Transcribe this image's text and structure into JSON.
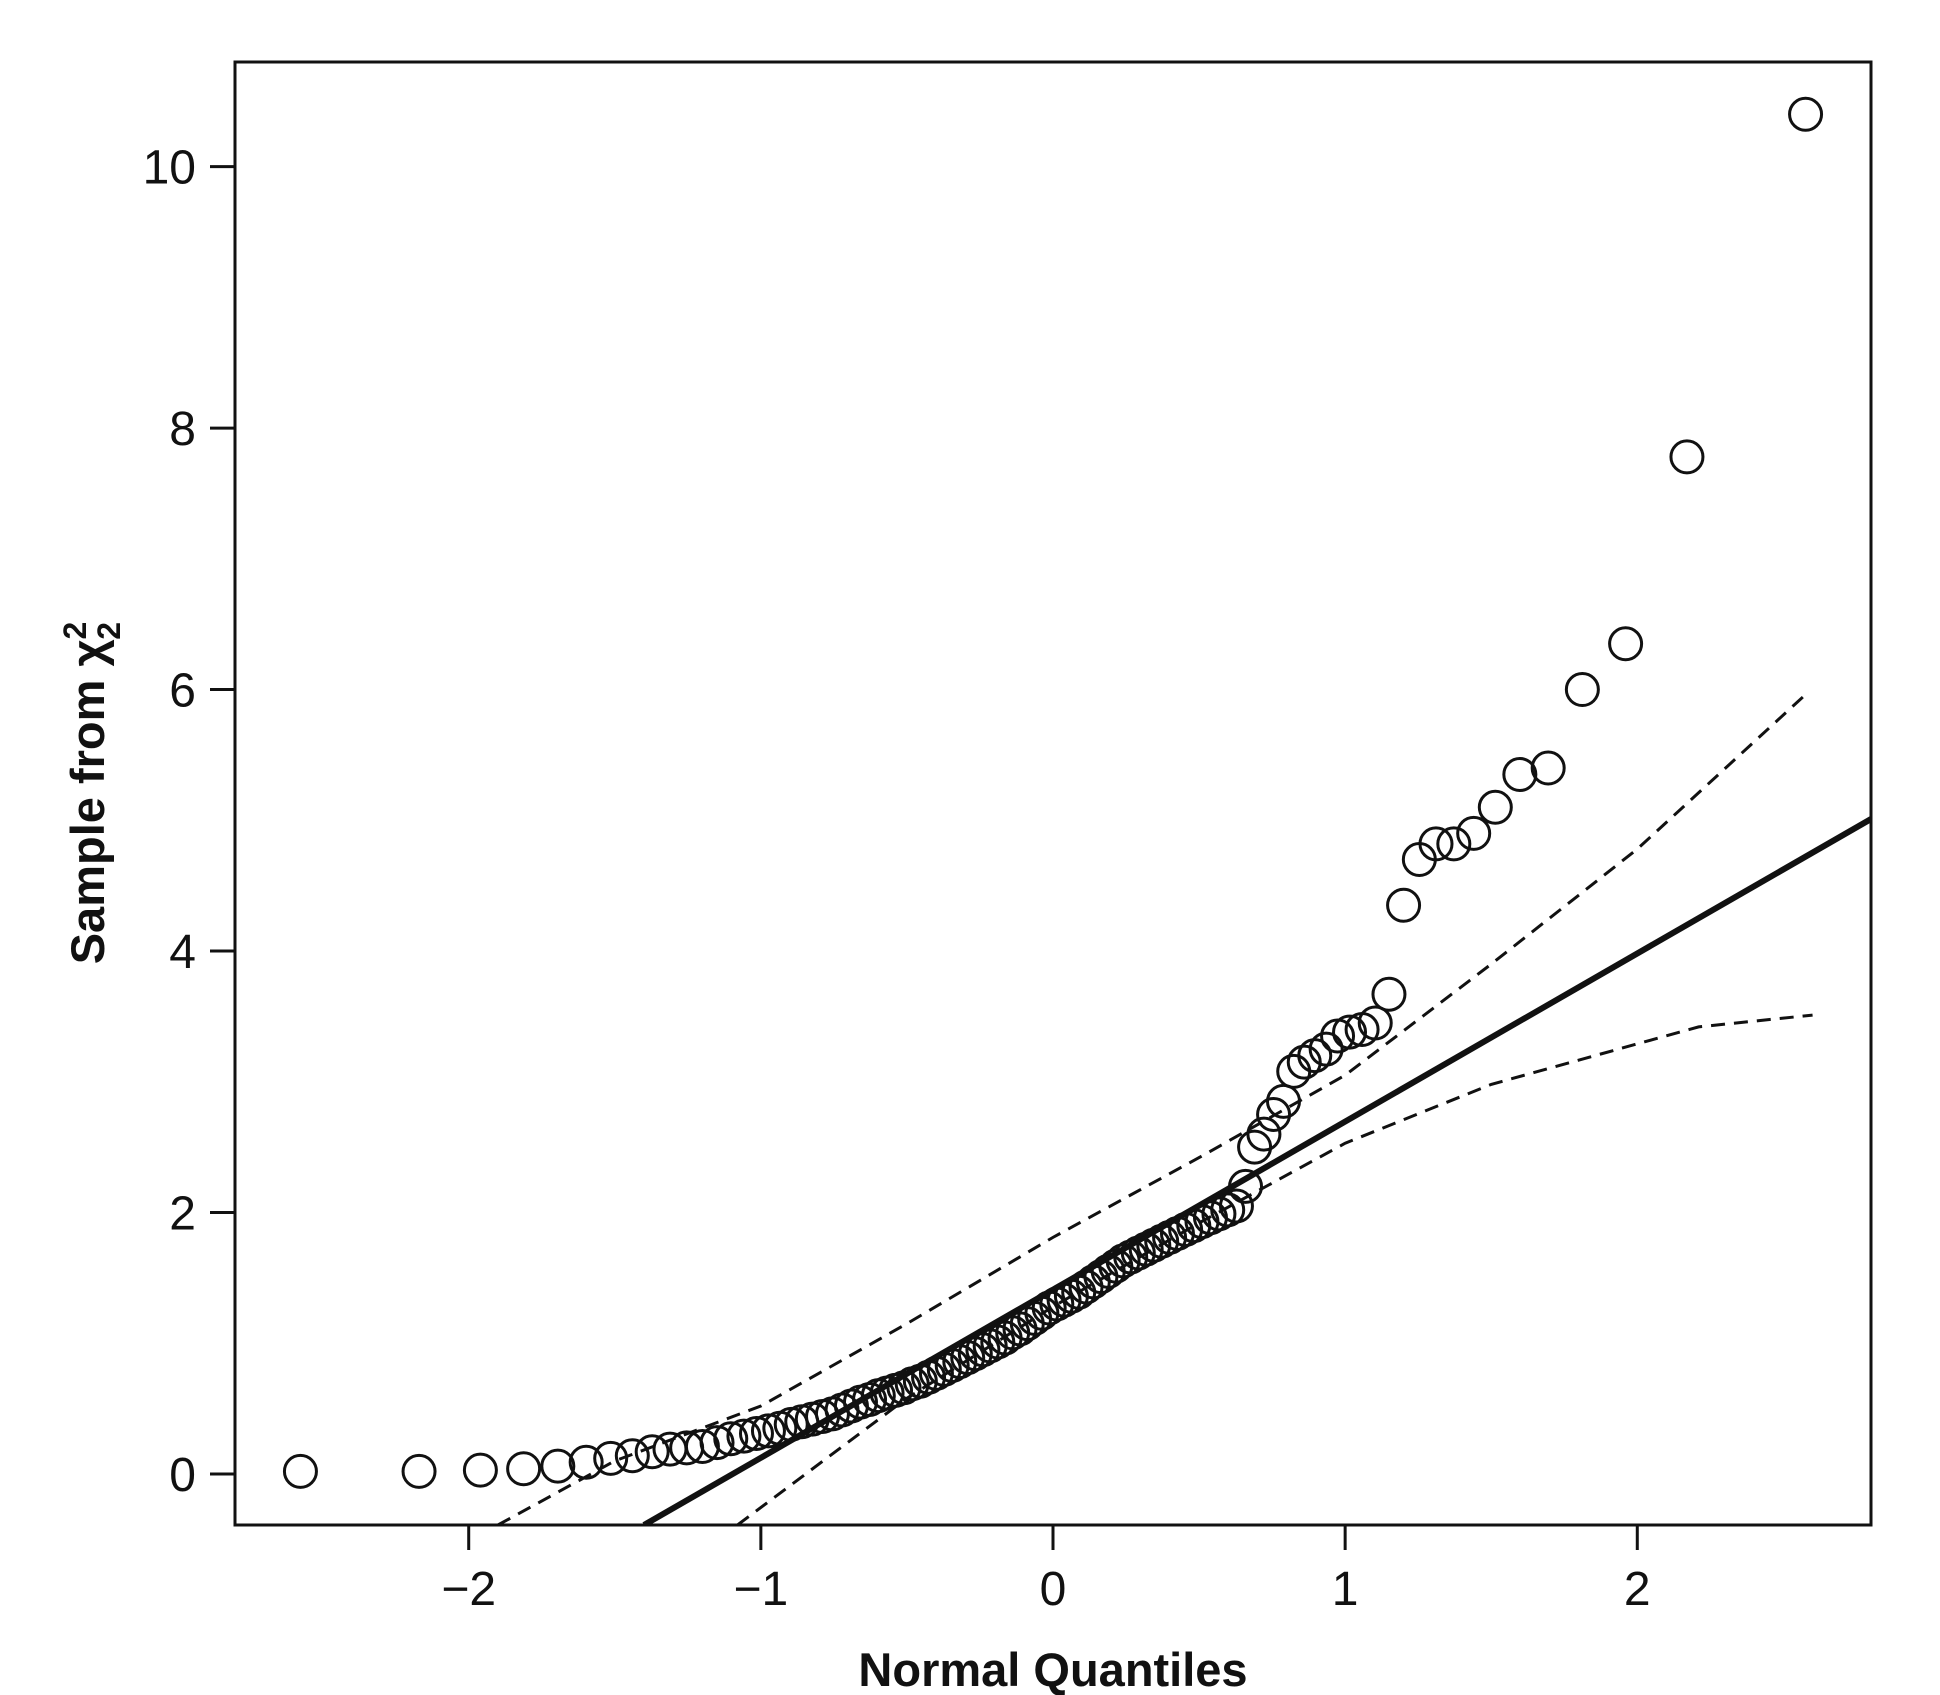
{
  "chart_data": {
    "type": "scatter",
    "x_label": "Normal Quantiles",
    "y_label": "Sample from χ",
    "y_label_superscript": "2",
    "y_label_subscript": "2",
    "xlim": [
      -2.8,
      2.8
    ],
    "ylim": [
      -0.39,
      10.8
    ],
    "xticks": [
      {
        "value": -2,
        "label": "−2"
      },
      {
        "value": -1,
        "label": "−1"
      },
      0,
      1,
      2
    ],
    "yticks": [
      0,
      2,
      4,
      6,
      8,
      10
    ],
    "grid": false,
    "color": "#111111",
    "x": [
      -2.576,
      -2.17,
      -1.96,
      -1.812,
      -1.695,
      -1.598,
      -1.514,
      -1.44,
      -1.372,
      -1.311,
      -1.254,
      -1.2,
      -1.15,
      -1.103,
      -1.058,
      -1.015,
      -0.974,
      -0.935,
      -0.896,
      -0.86,
      -0.824,
      -0.789,
      -0.755,
      -0.722,
      -0.69,
      -0.659,
      -0.628,
      -0.598,
      -0.568,
      -0.539,
      -0.51,
      -0.482,
      -0.454,
      -0.426,
      -0.399,
      -0.372,
      -0.345,
      -0.319,
      -0.292,
      -0.266,
      -0.24,
      -0.215,
      -0.189,
      -0.164,
      -0.138,
      -0.113,
      -0.088,
      -0.063,
      -0.038,
      -0.013,
      0.013,
      0.038,
      0.063,
      0.088,
      0.113,
      0.138,
      0.164,
      0.189,
      0.215,
      0.24,
      0.266,
      0.292,
      0.319,
      0.345,
      0.372,
      0.399,
      0.426,
      0.454,
      0.482,
      0.51,
      0.539,
      0.568,
      0.598,
      0.628,
      0.659,
      0.69,
      0.722,
      0.755,
      0.789,
      0.824,
      0.86,
      0.896,
      0.935,
      0.974,
      1.015,
      1.058,
      1.103,
      1.15,
      1.2,
      1.254,
      1.311,
      1.372,
      1.44,
      1.514,
      1.598,
      1.695,
      1.812,
      1.96,
      2.17,
      2.576
    ],
    "values": [
      0.02,
      0.02,
      0.03,
      0.04,
      0.06,
      0.09,
      0.12,
      0.14,
      0.17,
      0.19,
      0.2,
      0.21,
      0.24,
      0.27,
      0.29,
      0.31,
      0.33,
      0.35,
      0.38,
      0.4,
      0.42,
      0.44,
      0.46,
      0.49,
      0.52,
      0.55,
      0.57,
      0.6,
      0.62,
      0.64,
      0.66,
      0.69,
      0.71,
      0.74,
      0.77,
      0.8,
      0.83,
      0.86,
      0.89,
      0.92,
      0.95,
      0.98,
      1.01,
      1.04,
      1.08,
      1.11,
      1.15,
      1.19,
      1.23,
      1.27,
      1.3,
      1.33,
      1.36,
      1.39,
      1.43,
      1.47,
      1.51,
      1.55,
      1.59,
      1.63,
      1.66,
      1.69,
      1.72,
      1.75,
      1.78,
      1.81,
      1.84,
      1.87,
      1.9,
      1.93,
      1.96,
      1.99,
      2.02,
      2.05,
      2.2,
      2.5,
      2.6,
      2.75,
      2.85,
      3.08,
      3.15,
      3.2,
      3.25,
      3.35,
      3.38,
      3.4,
      3.45,
      3.67,
      4.35,
      4.7,
      4.82,
      4.82,
      4.9,
      5.1,
      5.35,
      5.4,
      6.0,
      6.35,
      7.78,
      10.4
    ],
    "reference_line": {
      "x": [
        -1.4,
        2.8
      ],
      "y": [
        -0.39,
        5.01
      ]
    },
    "envelope_upper": {
      "x": [
        -1.9,
        -1.5,
        -1.0,
        -0.5,
        0,
        0.5,
        1.0,
        1.5,
        2.0,
        2.58
      ],
      "y": [
        -0.39,
        0.1,
        0.52,
        1.15,
        1.81,
        2.42,
        3.05,
        3.9,
        4.78,
        5.97
      ]
    },
    "envelope_lower": {
      "x": [
        -1.08,
        -0.5,
        0,
        0.5,
        1.0,
        1.5,
        2.0,
        2.21,
        2.6
      ],
      "y": [
        -0.39,
        0.58,
        1.28,
        1.92,
        2.53,
        2.98,
        3.29,
        3.42,
        3.51
      ]
    }
  }
}
